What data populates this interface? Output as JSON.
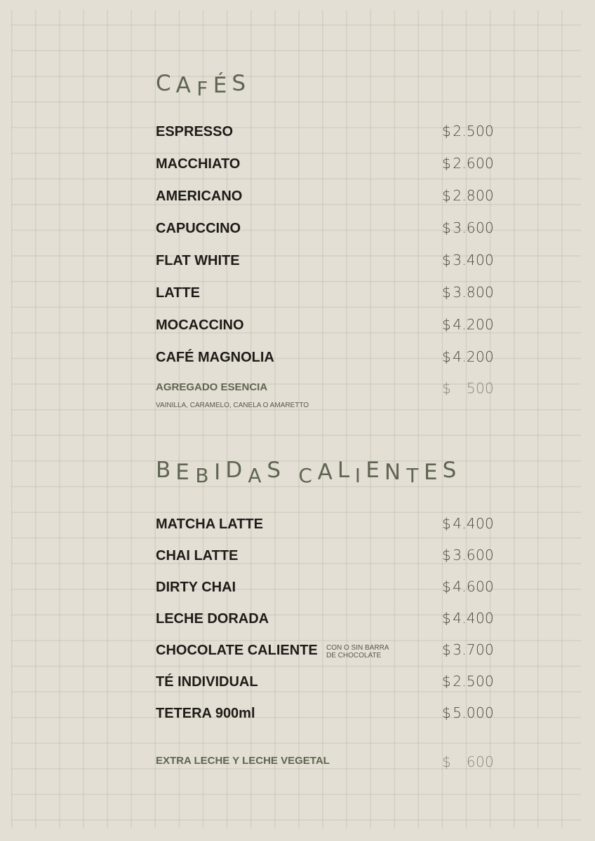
{
  "sections": [
    {
      "title": "CAFÉS",
      "items": [
        {
          "name": "ESPRESSO",
          "currency": "$",
          "price": "2.500"
        },
        {
          "name": "MACCHIATO",
          "currency": "$",
          "price": "2.600"
        },
        {
          "name": "AMERICANO",
          "currency": "$",
          "price": "2.800"
        },
        {
          "name": "CAPUCCINO",
          "currency": "$",
          "price": "3.600"
        },
        {
          "name": "FLAT WHITE",
          "currency": "$",
          "price": "3.400"
        },
        {
          "name": "LATTE",
          "currency": "$",
          "price": "3.800"
        },
        {
          "name": "MOCACCINO",
          "currency": "$",
          "price": "4.200"
        },
        {
          "name": "CAFÉ MAGNOLIA",
          "currency": "$",
          "price": "4.200"
        }
      ],
      "extra": {
        "name": "AGREGADO ESENCIA",
        "currency": "$",
        "price": "500",
        "note": "VAINILLA, CARAMELO, CANELA O AMARETTO"
      }
    },
    {
      "title": "BEBIDAS CALIENTES",
      "items": [
        {
          "name": "MATCHA LATTE",
          "currency": "$",
          "price": "4.400"
        },
        {
          "name": "CHAI LATTE",
          "currency": "$",
          "price": "3.600"
        },
        {
          "name": "DIRTY CHAI",
          "currency": "$",
          "price": "4.600"
        },
        {
          "name": "LECHE DORADA",
          "currency": "$",
          "price": "4.400"
        },
        {
          "name": "CHOCOLATE CALIENTE",
          "currency": "$",
          "price": "3.700",
          "note_line1": "CON O SIN BARRA",
          "note_line2": "DE CHOCOLATE"
        },
        {
          "name": "TÉ INDIVIDUAL",
          "currency": "$",
          "price": "2.500"
        },
        {
          "name": "TETERA 900ml",
          "currency": "$",
          "price": "5.000"
        }
      ],
      "extra": {
        "name": "EXTRA LECHE Y LECHE VEGETAL",
        "currency": "$",
        "price": "600"
      }
    }
  ],
  "colors": {
    "background": "#e3dfd4",
    "heading": "#5f6552",
    "item": "#1e1b18"
  }
}
